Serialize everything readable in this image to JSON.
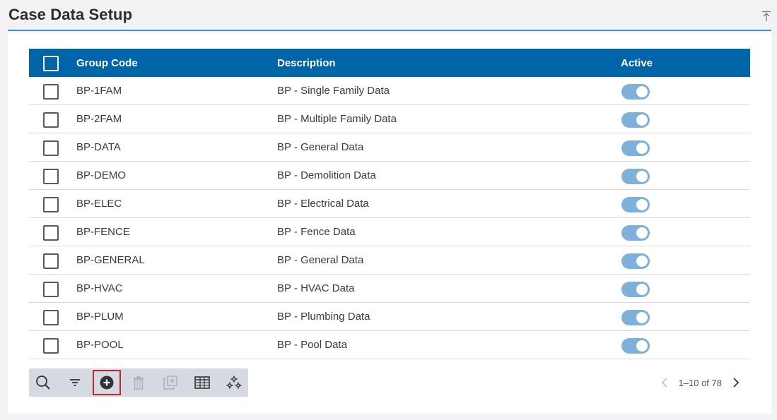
{
  "page": {
    "title": "Case Data Setup"
  },
  "grid": {
    "columns": {
      "group_code": "Group Code",
      "description": "Description",
      "active": "Active"
    },
    "rows": [
      {
        "code": "BP-1FAM",
        "description": "BP - Single Family Data",
        "active": true
      },
      {
        "code": "BP-2FAM",
        "description": "BP - Multiple Family Data",
        "active": true
      },
      {
        "code": "BP-DATA",
        "description": "BP - General Data",
        "active": true
      },
      {
        "code": "BP-DEMO",
        "description": "BP - Demolition Data",
        "active": true
      },
      {
        "code": "BP-ELEC",
        "description": "BP - Electrical Data",
        "active": true
      },
      {
        "code": "BP-FENCE",
        "description": "BP - Fence Data",
        "active": true
      },
      {
        "code": "BP-GENERAL",
        "description": "BP - General Data",
        "active": true
      },
      {
        "code": "BP-HVAC",
        "description": "BP - HVAC Data",
        "active": true
      },
      {
        "code": "BP-PLUM",
        "description": "BP - Plumbing Data",
        "active": true
      },
      {
        "code": "BP-POOL",
        "description": "BP - Pool Data",
        "active": true
      }
    ]
  },
  "toolbar": {
    "buttons": [
      {
        "icon": "search-icon",
        "enabled": true
      },
      {
        "icon": "filter-icon",
        "enabled": true
      },
      {
        "icon": "add-icon",
        "enabled": true,
        "selected": true
      },
      {
        "icon": "trash-icon",
        "enabled": false
      },
      {
        "icon": "copy-icon",
        "enabled": false
      },
      {
        "icon": "columns-icon",
        "enabled": true
      },
      {
        "icon": "settings-icon",
        "enabled": true
      }
    ]
  },
  "pagination": {
    "range_text": "1–10 of 78"
  },
  "colors": {
    "header_bg": "#0064a8",
    "accent_line": "#3d8fd1",
    "toggle_on": "#7fb0d9",
    "selected_outline": "#c0262d"
  }
}
